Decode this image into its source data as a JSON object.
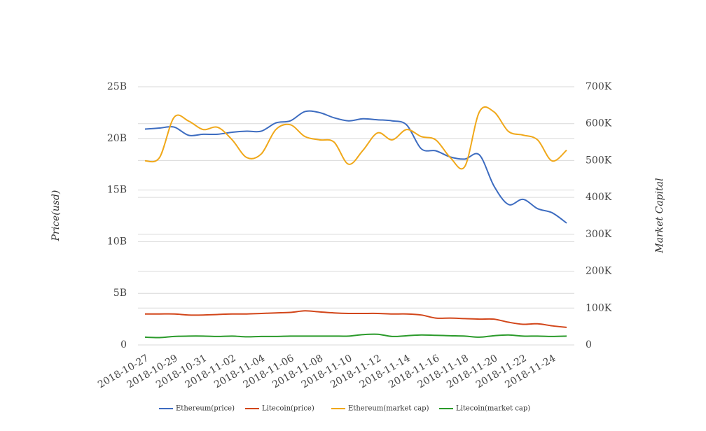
{
  "chart_data": {
    "type": "line",
    "y_label": "Price(usd)",
    "y2_label": "Market Capital",
    "categories": [
      "2018-10-27",
      null,
      "2018-10-29",
      null,
      "2018-10-31",
      null,
      "2018-11-02",
      null,
      "2018-11-04",
      null,
      "2018-11-06",
      null,
      "2018-11-08",
      null,
      "2018-11-10",
      null,
      "2018-11-12",
      null,
      "2018-11-14",
      null,
      "2018-11-16",
      null,
      "2018-11-18",
      null,
      "2018-11-20",
      null,
      "2018-11-22",
      null,
      "2018-11-24",
      null
    ],
    "ylim": [
      0,
      25000000000
    ],
    "yticks": [
      0,
      {
        "value": 5000000000,
        "label": "5B"
      },
      {
        "value": 10000000000,
        "label": "10B"
      },
      {
        "value": 15000000000,
        "label": "15B"
      },
      {
        "value": 20000000000,
        "label": "20B"
      },
      {
        "value": 25000000000,
        "label": "25B"
      }
    ],
    "y2lim": [
      0,
      700000
    ],
    "y2ticks": [
      0,
      {
        "value": 100000,
        "label": "100K"
      },
      {
        "value": 200000,
        "label": "200K"
      },
      {
        "value": 300000,
        "label": "300K"
      },
      {
        "value": 400000,
        "label": "400K"
      },
      {
        "value": 500000,
        "label": "500K"
      },
      {
        "value": 600000,
        "label": "600K"
      },
      {
        "value": 700000,
        "label": "700K"
      }
    ],
    "grid": true,
    "legend": "bottom",
    "series": [
      {
        "name": "Ethereum(price)",
        "color": "#3d6cc0",
        "values": [
          20900000000,
          21000000000,
          21100000000,
          20300000000,
          20400000000,
          20400000000,
          20600000000,
          20700000000,
          20700000000,
          21500000000,
          21700000000,
          22600000000,
          22500000000,
          22000000000,
          21700000000,
          21900000000,
          21800000000,
          21700000000,
          21300000000,
          19000000000,
          18800000000,
          18200000000,
          18000000000,
          18400000000,
          15400000000,
          13600000000,
          14100000000,
          13200000000,
          12800000000,
          11800000000
        ]
      },
      {
        "name": "Litecoin(price)",
        "color": "#d2461a",
        "values": [
          3000000000,
          3000000000,
          3000000000,
          2900000000,
          2900000000,
          2950000000,
          3000000000,
          3000000000,
          3050000000,
          3100000000,
          3150000000,
          3300000000,
          3200000000,
          3100000000,
          3050000000,
          3050000000,
          3050000000,
          3000000000,
          3000000000,
          2900000000,
          2600000000,
          2600000000,
          2550000000,
          2500000000,
          2500000000,
          2200000000,
          2000000000,
          2050000000,
          1850000000,
          1700000000
        ]
      },
      {
        "name": "Ethereum(market cap)",
        "color": "#f0a81a",
        "axis": "y2",
        "values": [
          499000,
          508000,
          617000,
          607000,
          584000,
          590000,
          556000,
          508000,
          518000,
          584000,
          597000,
          565000,
          556000,
          550000,
          490000,
          528000,
          575000,
          556000,
          584000,
          565000,
          556000,
          508000,
          484000,
          632000,
          632000,
          579000,
          569000,
          556000,
          499000,
          528000
        ]
      },
      {
        "name": "Litecoin(market cap)",
        "color": "#2a9a2a",
        "axis": "y2",
        "values": [
          21000,
          20000,
          23000,
          24000,
          24000,
          23000,
          24000,
          22000,
          23000,
          23000,
          24000,
          24000,
          24000,
          24000,
          24000,
          28000,
          29000,
          23000,
          25000,
          27000,
          26000,
          25000,
          24000,
          21000,
          25000,
          27000,
          24000,
          24000,
          23000,
          24000
        ]
      }
    ]
  }
}
